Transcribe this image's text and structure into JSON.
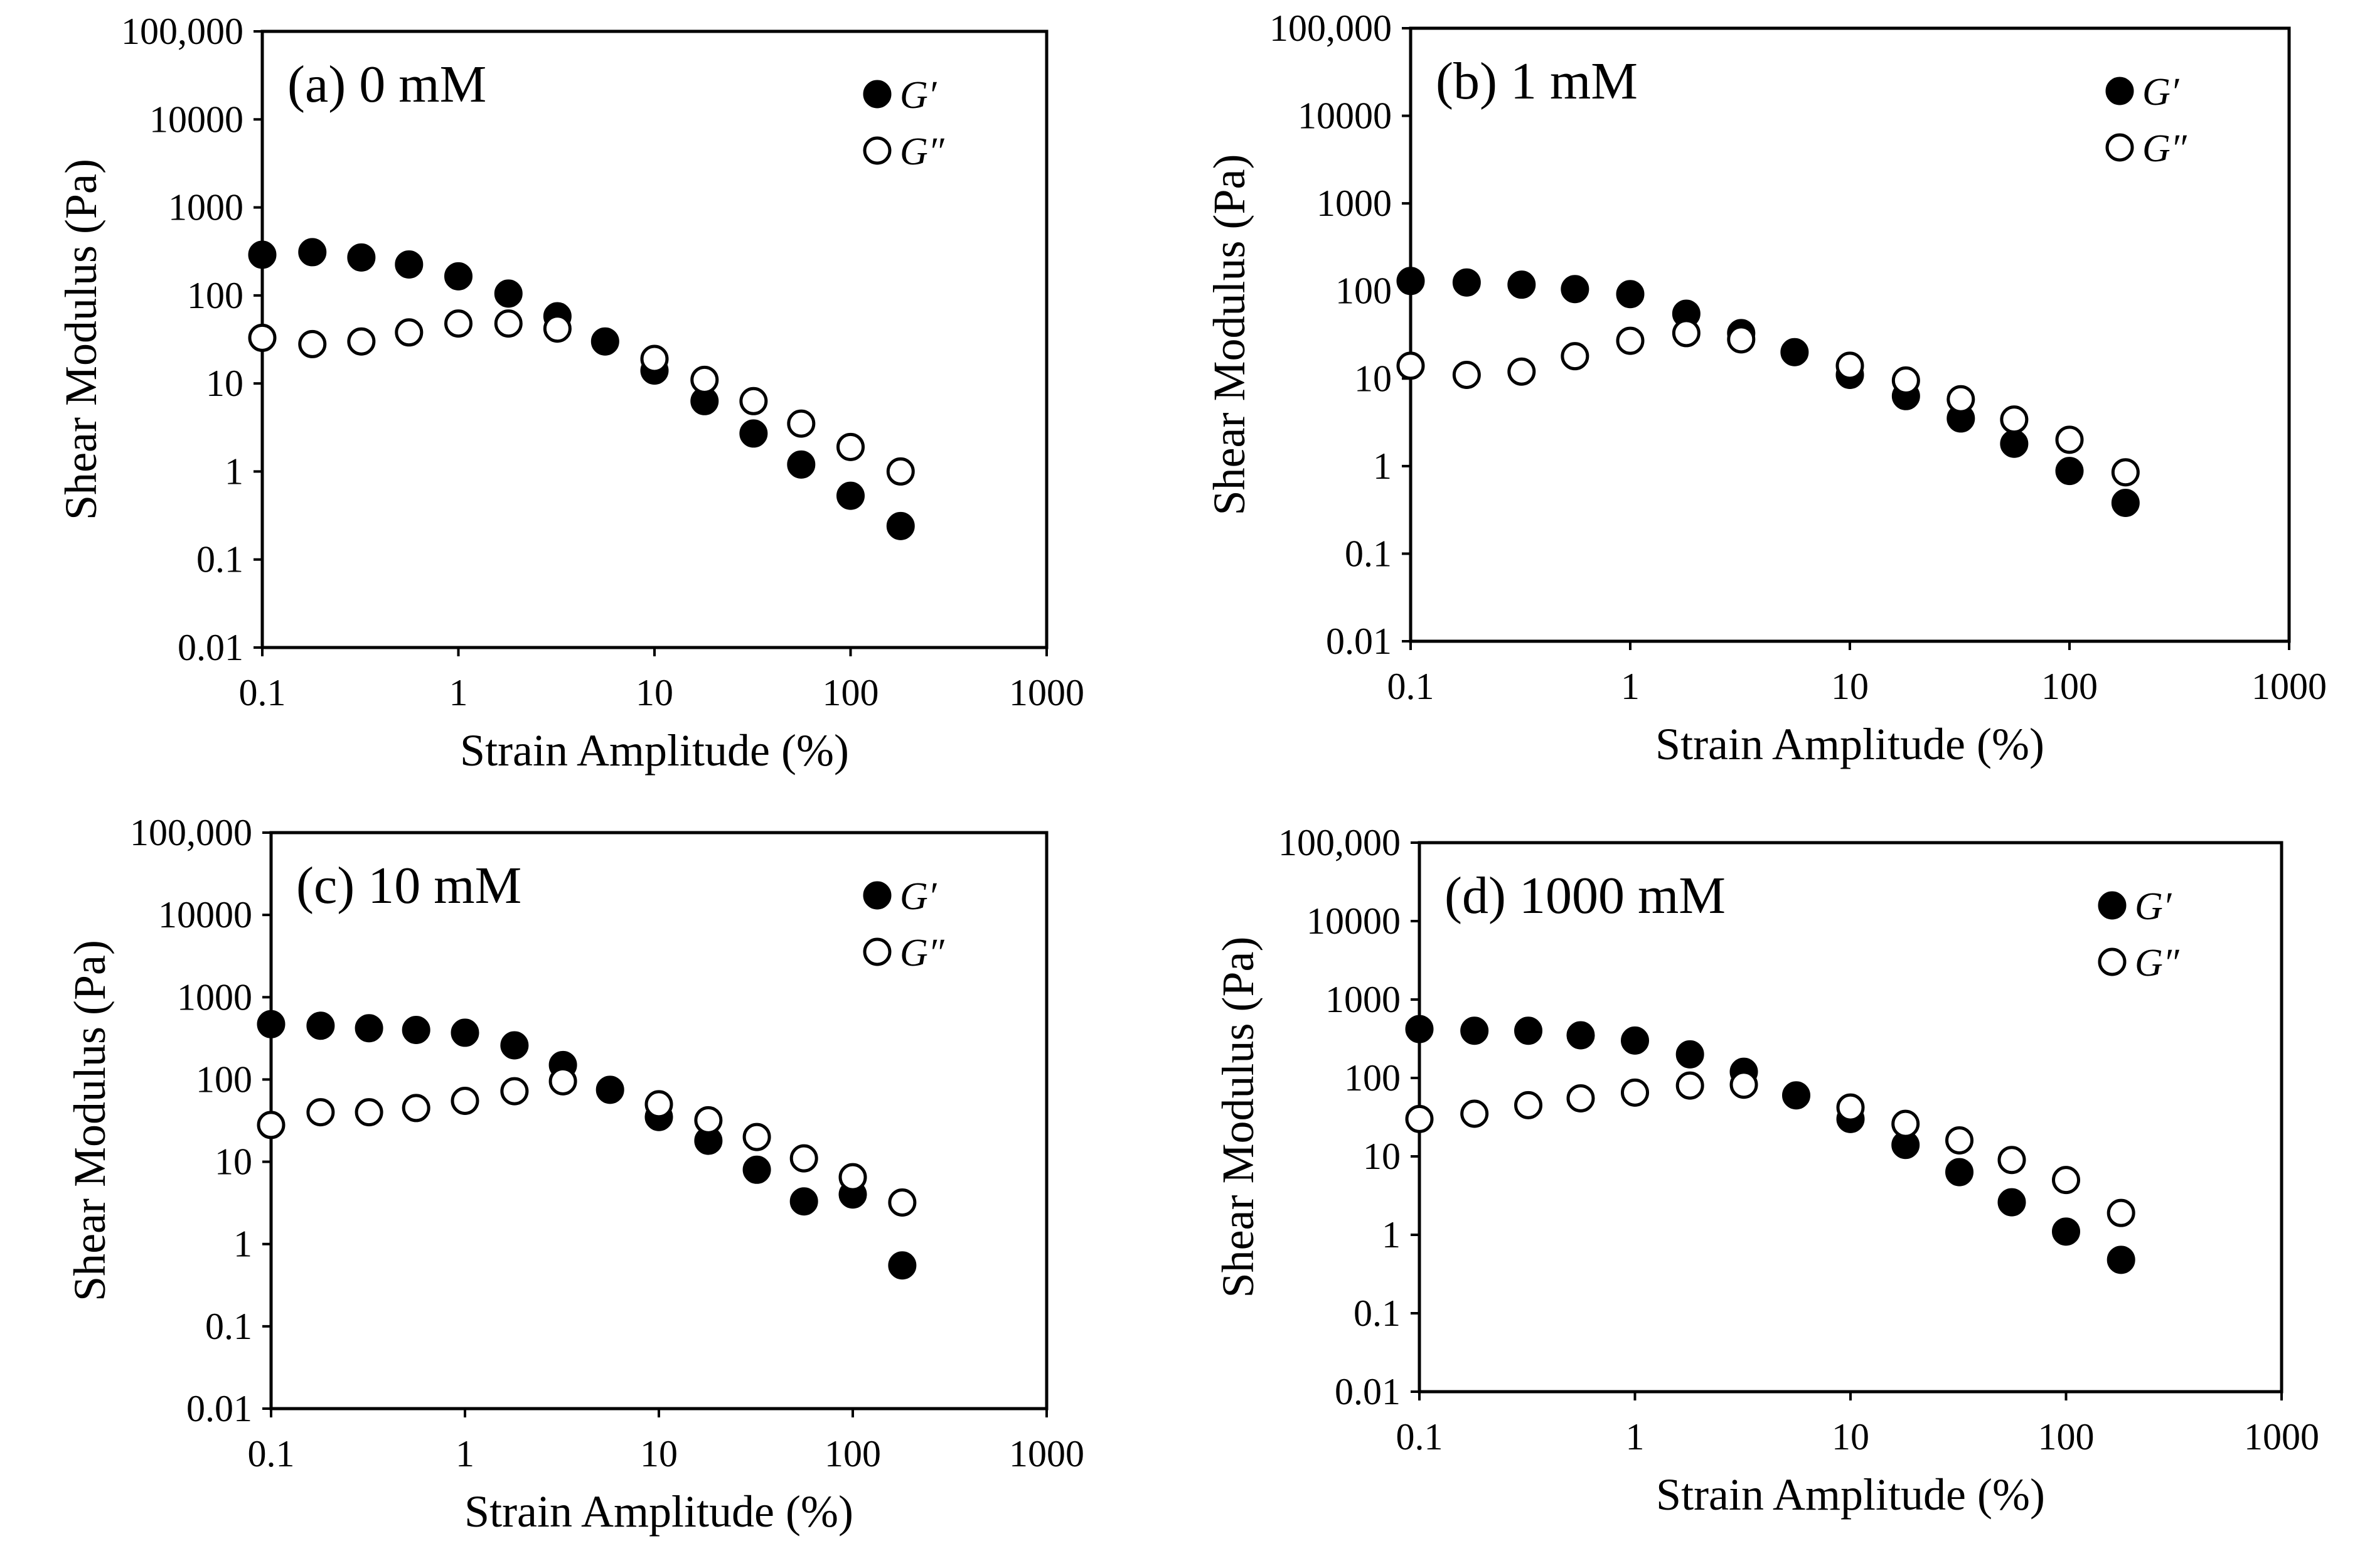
{
  "chart_data": [
    {
      "type": "scatter",
      "title": "(a) 0 mM",
      "xlabel": "Strain Amplitude (%)",
      "ylabel": "Shear Modulus (Pa)",
      "xscale": "log",
      "yscale": "log",
      "xlim": [
        0.1,
        1000
      ],
      "ylim": [
        0.01,
        100000
      ],
      "xticks": [
        "0.1",
        "1",
        "10",
        "100",
        "1000"
      ],
      "yticks": [
        "0.01",
        "0.1",
        "1",
        "10",
        "100",
        "1000",
        "10000",
        "100,000"
      ],
      "legend_position": "top-right",
      "series": [
        {
          "name": "G′",
          "marker": "filled-circle",
          "x": [
            0.1,
            0.18,
            0.32,
            0.56,
            1,
            1.8,
            3.2,
            5.6,
            10,
            18,
            32,
            56,
            100,
            180
          ],
          "y": [
            290,
            310,
            270,
            225,
            165,
            105,
            58,
            30,
            14,
            6.3,
            2.7,
            1.2,
            0.53,
            0.24
          ]
        },
        {
          "name": "G″",
          "marker": "open-circle",
          "x": [
            0.1,
            0.18,
            0.32,
            0.56,
            1,
            1.8,
            3.2,
            10,
            18,
            32,
            56,
            100,
            180
          ],
          "y": [
            33,
            28,
            30,
            38,
            48,
            48,
            42,
            19,
            11,
            6.3,
            3.5,
            1.9,
            1.0
          ]
        }
      ]
    },
    {
      "type": "scatter",
      "title": "(b) 1 mM",
      "xlabel": "Strain Amplitude (%)",
      "ylabel": "Shear Modulus (Pa)",
      "xscale": "log",
      "yscale": "log",
      "xlim": [
        0.1,
        1000
      ],
      "ylim": [
        0.01,
        100000
      ],
      "xticks": [
        "0.1",
        "1",
        "10",
        "100",
        "1000"
      ],
      "yticks": [
        "0.01",
        "0.1",
        "1",
        "10",
        "100",
        "1000",
        "10000",
        "100,000"
      ],
      "legend_position": "top-right",
      "series": [
        {
          "name": "G′",
          "marker": "filled-circle",
          "x": [
            0.1,
            0.18,
            0.32,
            0.56,
            1,
            1.8,
            3.2,
            5.6,
            10,
            18,
            32,
            56,
            100,
            180
          ],
          "y": [
            130,
            125,
            118,
            105,
            92,
            55,
            33,
            20,
            11,
            6.3,
            3.5,
            1.8,
            0.88,
            0.38
          ]
        },
        {
          "name": "G″",
          "marker": "open-circle",
          "x": [
            0.1,
            0.18,
            0.32,
            0.56,
            1,
            1.8,
            3.2,
            10,
            18,
            32,
            56,
            100,
            180
          ],
          "y": [
            14,
            11,
            12,
            18,
            27,
            33,
            28,
            14,
            9.5,
            5.8,
            3.4,
            2.0,
            0.85
          ]
        }
      ]
    },
    {
      "type": "scatter",
      "title": "(c) 10 mM",
      "xlabel": "Strain Amplitude (%)",
      "ylabel": "Shear Modulus (Pa)",
      "xscale": "log",
      "yscale": "log",
      "xlim": [
        0.1,
        1000
      ],
      "ylim": [
        0.01,
        100000
      ],
      "xticks": [
        "0.1",
        "1",
        "10",
        "100",
        "1000"
      ],
      "yticks": [
        "0.01",
        "0.1",
        "1",
        "10",
        "100",
        "1000",
        "10000",
        "100,000"
      ],
      "legend_position": "top-right",
      "series": [
        {
          "name": "G′",
          "marker": "filled-circle",
          "x": [
            0.1,
            0.18,
            0.32,
            0.56,
            1,
            1.8,
            3.2,
            5.6,
            10,
            18,
            32,
            56,
            100,
            180
          ],
          "y": [
            470,
            450,
            420,
            400,
            370,
            260,
            150,
            75,
            35,
            18,
            8,
            3.3,
            4.0,
            0.55
          ]
        },
        {
          "name": "G″",
          "marker": "open-circle",
          "x": [
            0.1,
            0.18,
            0.32,
            0.56,
            1,
            1.8,
            3.2,
            10,
            18,
            32,
            56,
            100,
            180
          ],
          "y": [
            28,
            40,
            40,
            45,
            55,
            72,
            95,
            50,
            32,
            20,
            11,
            6.5,
            3.2
          ]
        }
      ]
    },
    {
      "type": "scatter",
      "title": "(d) 1000 mM",
      "xlabel": "Strain Amplitude (%)",
      "ylabel": "Shear Modulus (Pa)",
      "xscale": "log",
      "yscale": "log",
      "xlim": [
        0.1,
        1000
      ],
      "ylim": [
        0.01,
        100000
      ],
      "xticks": [
        "0.1",
        "1",
        "10",
        "100",
        "1000"
      ],
      "yticks": [
        "0.01",
        "0.1",
        "1",
        "10",
        "100",
        "1000",
        "10000",
        "100,000"
      ],
      "legend_position": "top-right",
      "series": [
        {
          "name": "G′",
          "marker": "filled-circle",
          "x": [
            0.1,
            0.18,
            0.32,
            0.56,
            1,
            1.8,
            3.2,
            5.6,
            10,
            18,
            32,
            56,
            100,
            180
          ],
          "y": [
            420,
            400,
            400,
            350,
            300,
            200,
            120,
            60,
            30,
            14,
            6.3,
            2.6,
            1.1,
            0.48
          ]
        },
        {
          "name": "G″",
          "marker": "open-circle",
          "x": [
            0.1,
            0.18,
            0.32,
            0.56,
            1,
            1.8,
            3.2,
            10,
            18,
            32,
            56,
            100,
            180
          ],
          "y": [
            30,
            35,
            45,
            55,
            65,
            80,
            82,
            42,
            26,
            16,
            9,
            5,
            1.9
          ]
        }
      ]
    }
  ]
}
